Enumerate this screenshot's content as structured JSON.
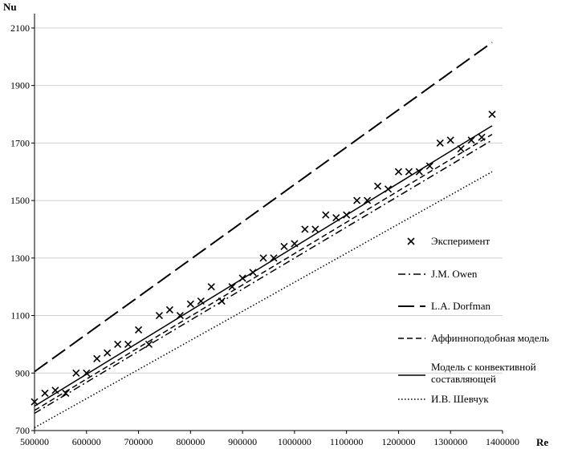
{
  "chart_data": {
    "type": "scatter",
    "title": "",
    "xlabel": "Re",
    "ylabel": "Nu",
    "xlim": [
      500000,
      1400000
    ],
    "ylim": [
      700,
      2150
    ],
    "x_ticks": [
      500000,
      600000,
      700000,
      800000,
      900000,
      1000000,
      1100000,
      1200000,
      1300000,
      1400000
    ],
    "x_tick_labels": [
      "500000",
      "600000",
      "700000",
      "800000",
      "900000",
      "1000000",
      "1100000",
      "1200000",
      "1300000",
      "1400000"
    ],
    "y_ticks": [
      700,
      900,
      1100,
      1300,
      1500,
      1700,
      1900,
      2100
    ],
    "y_tick_labels": [
      "700",
      "900",
      "1100",
      "1300",
      "1500",
      "1700",
      "1900",
      "2100"
    ],
    "grid": {
      "horizontal": true,
      "vertical": false
    },
    "legend_position": "right",
    "series": [
      {
        "name": "Эксперимент",
        "kind": "markers",
        "marker": "x",
        "color": "#000000",
        "points": [
          [
            500000,
            800
          ],
          [
            520000,
            830
          ],
          [
            540000,
            840
          ],
          [
            560000,
            830
          ],
          [
            580000,
            900
          ],
          [
            600000,
            900
          ],
          [
            620000,
            950
          ],
          [
            640000,
            970
          ],
          [
            660000,
            1000
          ],
          [
            680000,
            1000
          ],
          [
            700000,
            1050
          ],
          [
            720000,
            1000
          ],
          [
            740000,
            1100
          ],
          [
            760000,
            1120
          ],
          [
            780000,
            1100
          ],
          [
            800000,
            1140
          ],
          [
            820000,
            1150
          ],
          [
            840000,
            1200
          ],
          [
            860000,
            1150
          ],
          [
            880000,
            1200
          ],
          [
            900000,
            1230
          ],
          [
            920000,
            1250
          ],
          [
            940000,
            1300
          ],
          [
            960000,
            1300
          ],
          [
            980000,
            1340
          ],
          [
            1000000,
            1350
          ],
          [
            1020000,
            1400
          ],
          [
            1040000,
            1400
          ],
          [
            1060000,
            1450
          ],
          [
            1080000,
            1440
          ],
          [
            1100000,
            1450
          ],
          [
            1120000,
            1500
          ],
          [
            1140000,
            1500
          ],
          [
            1160000,
            1550
          ],
          [
            1180000,
            1540
          ],
          [
            1200000,
            1600
          ],
          [
            1220000,
            1600
          ],
          [
            1240000,
            1600
          ],
          [
            1260000,
            1620
          ],
          [
            1280000,
            1700
          ],
          [
            1300000,
            1710
          ],
          [
            1320000,
            1680
          ],
          [
            1340000,
            1710
          ],
          [
            1360000,
            1720
          ],
          [
            1380000,
            1800
          ]
        ]
      },
      {
        "name": "J.M. Owen",
        "kind": "line",
        "dash": "dashdot",
        "color": "#000000",
        "points": [
          [
            500000,
            760
          ],
          [
            1380000,
            1710
          ]
        ]
      },
      {
        "name": "L.A. Dorfman",
        "kind": "line",
        "dash": "longdash",
        "color": "#000000",
        "points": [
          [
            500000,
            905
          ],
          [
            1380000,
            2050
          ]
        ]
      },
      {
        "name": "Аффинноподобная модель",
        "kind": "line",
        "dash": "dash",
        "color": "#000000",
        "points": [
          [
            500000,
            770
          ],
          [
            1380000,
            1730
          ]
        ]
      },
      {
        "name": "Модель  с конвективной составляющей",
        "kind": "line",
        "dash": "solid",
        "color": "#000000",
        "points": [
          [
            500000,
            785
          ],
          [
            1380000,
            1760
          ]
        ]
      },
      {
        "name": "И.В.  Шевчук",
        "kind": "line",
        "dash": "dotted",
        "color": "#000000",
        "points": [
          [
            500000,
            710
          ],
          [
            1380000,
            1600
          ]
        ]
      }
    ]
  }
}
